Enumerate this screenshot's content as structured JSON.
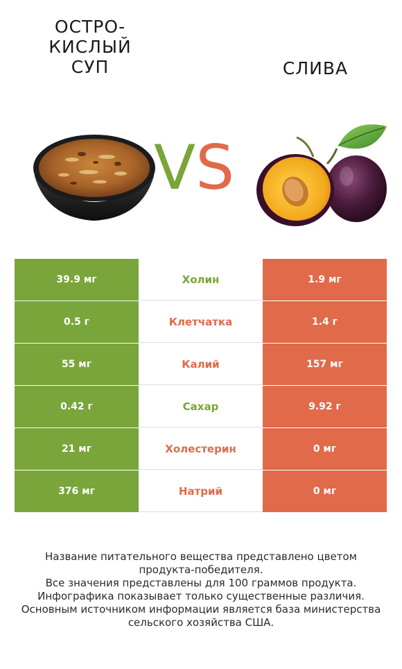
{
  "header": {
    "left_title": [
      "ОСТРО-",
      "КИСЛЫЙ",
      "СУП"
    ],
    "right_title": "СЛИВА",
    "vs_v": "V",
    "vs_s": "S"
  },
  "colors": {
    "winner_left": "#7aa53a",
    "winner_right": "#e06a4a"
  },
  "rows": [
    {
      "left": "39.9 мг",
      "nutrient": "Холин",
      "right": "1.9 мг",
      "winner": "left"
    },
    {
      "left": "0.5 г",
      "nutrient": "Клетчатка",
      "right": "1.4 г",
      "winner": "right"
    },
    {
      "left": "55 мг",
      "nutrient": "Калий",
      "right": "157 мг",
      "winner": "right"
    },
    {
      "left": "0.42 г",
      "nutrient": "Сахар",
      "right": "9.92 г",
      "winner": "left"
    },
    {
      "left": "21 мг",
      "nutrient": "Холестерин",
      "right": "0 мг",
      "winner": "right"
    },
    {
      "left": "376 мг",
      "nutrient": "Натрий",
      "right": "0 мг",
      "winner": "right"
    }
  ],
  "footnote": [
    "Название питательного вещества представлено цветом",
    "продукта-победителя.",
    "Все значения представлены для 100 граммов продукта.",
    "Инфографика показывает только существенные различия.",
    "Основным источником информации является база министерства",
    "сельского хозяйства США."
  ]
}
